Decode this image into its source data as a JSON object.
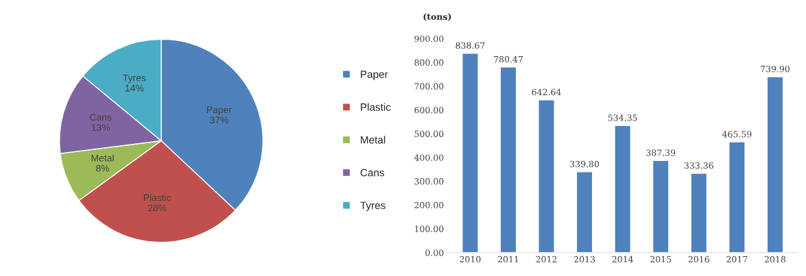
{
  "chart_data": [
    {
      "type": "pie",
      "categories": [
        "Paper",
        "Plastic",
        "Metal",
        "Cans",
        "Tyres"
      ],
      "values": [
        37,
        28,
        8,
        13,
        14
      ],
      "colors": [
        "#4f81bd",
        "#c0504d",
        "#9bbb59",
        "#8064a2",
        "#4bacc6"
      ],
      "value_labels": [
        "37%",
        "28%",
        "8%",
        "13%",
        "14%"
      ],
      "legend": "right"
    },
    {
      "type": "bar",
      "ylabel": "(tons)",
      "categories": [
        "2010",
        "2011",
        "2012",
        "2013",
        "2014",
        "2015",
        "2016",
        "2017",
        "2018"
      ],
      "values": [
        838.67,
        780.47,
        642.64,
        339.8,
        534.35,
        387.39,
        333.36,
        465.59,
        739.9
      ],
      "value_labels": [
        "838.67",
        "780.47",
        "642.64",
        "339.80",
        "534.35",
        "387.39",
        "333.36",
        "465.59",
        "739.90"
      ],
      "color": "#4f81bd",
      "ylim": [
        0,
        900
      ],
      "yticks": [
        {
          "value": 0,
          "label": "0.00"
        },
        {
          "value": 100,
          "label": "100.00"
        },
        {
          "value": 200,
          "label": "200.00"
        },
        {
          "value": 300,
          "label": "300.00"
        },
        {
          "value": 400,
          "label": "400.00"
        },
        {
          "value": 500,
          "label": "500.00"
        },
        {
          "value": 600,
          "label": "600.00"
        },
        {
          "value": 700,
          "label": "700.00"
        },
        {
          "value": 800,
          "label": "800.00"
        },
        {
          "value": 900,
          "label": "900.00"
        }
      ],
      "grid": false,
      "legend": false
    }
  ]
}
